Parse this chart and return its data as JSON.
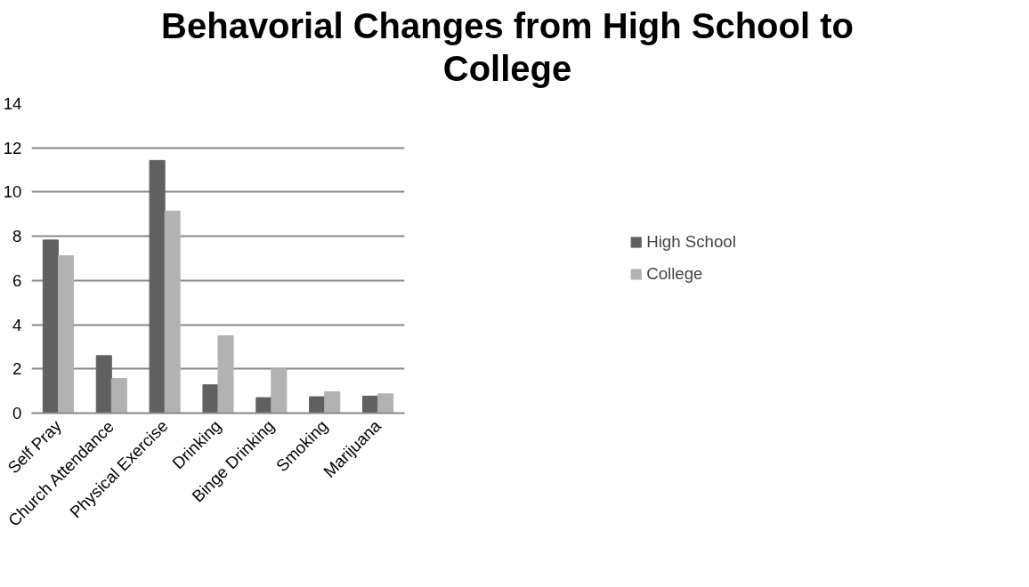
{
  "chart_data": {
    "type": "bar",
    "title": "Behavorial Changes from High School to College",
    "categories": [
      "Self Pray",
      "Church Attendance",
      "Physical Exercise",
      "Drinking",
      "Binge Drinking",
      "Smoking",
      "Marijuana"
    ],
    "series": [
      {
        "name": "High School",
        "color": "#606060",
        "values": [
          7.83,
          2.6,
          11.43,
          1.28,
          0.7,
          0.74,
          0.77
        ]
      },
      {
        "name": "College",
        "color": "#b2b2b2",
        "values": [
          7.12,
          1.57,
          9.14,
          3.5,
          2.0,
          0.97,
          0.87
        ]
      }
    ],
    "ylim": [
      0,
      14
    ],
    "yticks": [
      0,
      2,
      4,
      6,
      8,
      10,
      12,
      14
    ],
    "grid": "y",
    "legend": "right"
  }
}
